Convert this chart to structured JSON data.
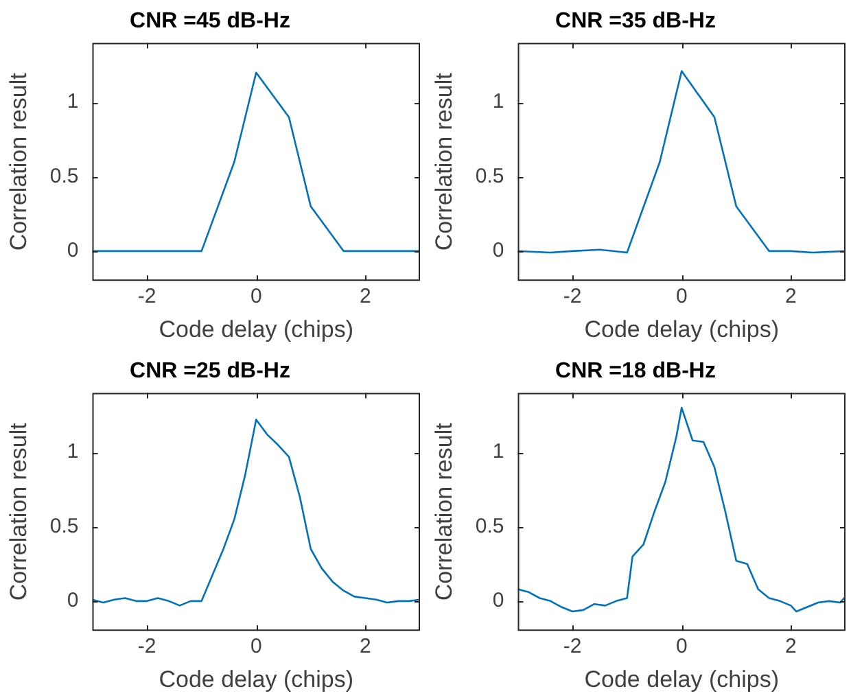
{
  "chart_data": [
    {
      "type": "line",
      "title": "CNR =45 dB-Hz",
      "xlabel": "Code delay (chips)",
      "ylabel": "Correlation result",
      "xlim": [
        -3,
        3
      ],
      "xticks": [
        -2,
        0,
        2
      ],
      "ylim": [
        -0.2,
        1.4
      ],
      "yticks": [
        0,
        0.5,
        1
      ],
      "x": [
        -3,
        -1,
        -0.4,
        0,
        0.6,
        1,
        1.6,
        3
      ],
      "series": [
        {
          "color": "#0072bd",
          "values": [
            0,
            0,
            0.6,
            1.2,
            0.9,
            0.3,
            0,
            0
          ]
        }
      ]
    },
    {
      "type": "line",
      "title": "CNR =35 dB-Hz",
      "xlabel": "Code delay (chips)",
      "ylabel": "Correlation result",
      "xlim": [
        -3,
        3
      ],
      "xticks": [
        -2,
        0,
        2
      ],
      "ylim": [
        -0.2,
        1.4
      ],
      "yticks": [
        0,
        0.5,
        1
      ],
      "x": [
        -3,
        -2.4,
        -2,
        -1.5,
        -1,
        -0.4,
        0,
        0.6,
        1,
        1.6,
        2,
        2.4,
        3
      ],
      "series": [
        {
          "color": "#0072bd",
          "values": [
            0,
            -0.01,
            0,
            0.01,
            -0.01,
            0.6,
            1.21,
            0.9,
            0.3,
            0,
            0,
            -0.01,
            0
          ]
        }
      ]
    },
    {
      "type": "line",
      "title": "CNR =25 dB-Hz",
      "xlabel": "Code delay (chips)",
      "ylabel": "Correlation result",
      "xlim": [
        -3,
        3
      ],
      "xticks": [
        -2,
        0,
        2
      ],
      "ylim": [
        -0.2,
        1.4
      ],
      "yticks": [
        0,
        0.5,
        1
      ],
      "x": [
        -3,
        -2.8,
        -2.6,
        -2.4,
        -2.2,
        -2,
        -1.8,
        -1.6,
        -1.4,
        -1.2,
        -1,
        -0.6,
        -0.4,
        -0.2,
        0,
        0.2,
        0.4,
        0.6,
        0.8,
        1,
        1.2,
        1.4,
        1.6,
        1.8,
        2,
        2.2,
        2.4,
        2.6,
        2.8,
        3
      ],
      "series": [
        {
          "color": "#0072bd",
          "values": [
            0.01,
            -0.01,
            0.01,
            0.02,
            0,
            0,
            0.02,
            0,
            -0.03,
            0,
            0,
            0.35,
            0.55,
            0.85,
            1.22,
            1.12,
            1.05,
            0.97,
            0.7,
            0.35,
            0.22,
            0.13,
            0.07,
            0.03,
            0.02,
            0.01,
            -0.01,
            0,
            0,
            0.01
          ]
        }
      ]
    },
    {
      "type": "line",
      "title": "CNR =18 dB-Hz",
      "xlabel": "Code delay (chips)",
      "ylabel": "Correlation result",
      "xlim": [
        -3,
        3
      ],
      "xticks": [
        -2,
        0,
        2
      ],
      "ylim": [
        -0.2,
        1.4
      ],
      "yticks": [
        0,
        0.5,
        1
      ],
      "x": [
        -3,
        -2.8,
        -2.6,
        -2.4,
        -2.2,
        -2,
        -1.8,
        -1.6,
        -1.4,
        -1.2,
        -1,
        -0.9,
        -0.7,
        -0.5,
        -0.3,
        -0.1,
        0,
        0.2,
        0.4,
        0.6,
        0.8,
        1,
        1.2,
        1.4,
        1.6,
        1.8,
        2,
        2.1,
        2.3,
        2.5,
        2.7,
        2.9,
        3
      ],
      "series": [
        {
          "color": "#0072bd",
          "values": [
            0.08,
            0.06,
            0.02,
            0,
            -0.04,
            -0.07,
            -0.06,
            -0.02,
            -0.03,
            0,
            0.02,
            0.3,
            0.38,
            0.6,
            0.8,
            1.1,
            1.3,
            1.08,
            1.07,
            0.9,
            0.6,
            0.27,
            0.25,
            0.08,
            0.02,
            0,
            -0.03,
            -0.07,
            -0.04,
            -0.01,
            0,
            -0.01,
            0.03
          ]
        }
      ]
    }
  ]
}
